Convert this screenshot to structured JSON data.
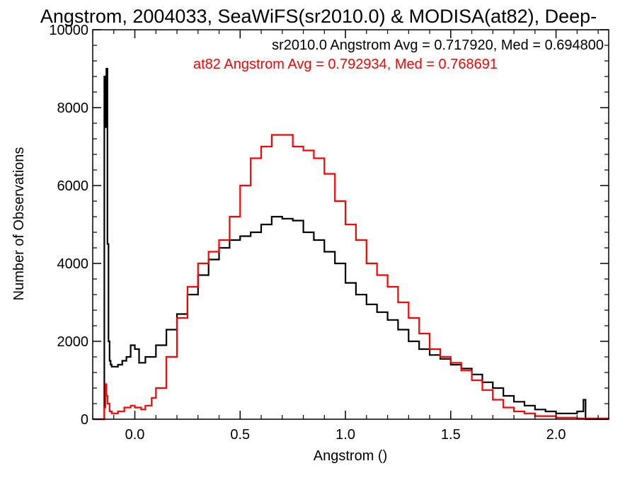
{
  "chart_data": {
    "type": "line",
    "title": "Angstrom, 2004033, SeaWiFS(sr2010.0) & MODISA(at82), Deep-",
    "xlabel": "Angstrom ()",
    "ylabel": "Number of Observations",
    "xlim": [
      -0.2,
      2.25
    ],
    "ylim": [
      0,
      10000
    ],
    "x_ticks": [
      "0.0",
      "0.5",
      "1.0",
      "1.5",
      "2.0"
    ],
    "y_ticks": [
      "0",
      "2000",
      "4000",
      "6000",
      "8000",
      "10000"
    ],
    "grid": false,
    "annotations": [
      {
        "text": "sr2010.0 Angstrom Avg = 0.717920, Med = 0.694800",
        "color": "#000000"
      },
      {
        "text": "at82 Angstrom Avg = 0.792934, Med = 0.768691",
        "color": "#ff0000"
      }
    ],
    "series": [
      {
        "color": "#000000",
        "x": [
          -0.2,
          -0.16,
          -0.15,
          -0.145,
          -0.14,
          -0.135,
          -0.13,
          -0.125,
          -0.12,
          -0.115,
          -0.11,
          -0.1,
          -0.08,
          -0.06,
          -0.04,
          -0.02,
          0.0,
          0.02,
          0.05,
          0.1,
          0.15,
          0.2,
          0.25,
          0.3,
          0.35,
          0.4,
          0.45,
          0.5,
          0.55,
          0.6,
          0.65,
          0.7,
          0.75,
          0.8,
          0.85,
          0.9,
          0.95,
          1.0,
          1.05,
          1.1,
          1.15,
          1.2,
          1.25,
          1.3,
          1.35,
          1.4,
          1.45,
          1.5,
          1.55,
          1.6,
          1.65,
          1.7,
          1.75,
          1.8,
          1.85,
          1.9,
          1.95,
          2.0,
          2.05,
          2.1,
          2.13,
          2.14,
          2.145,
          2.25
        ],
        "y": [
          0,
          0,
          0,
          8800,
          7500,
          9000,
          4500,
          2000,
          1500,
          1400,
          1350,
          1350,
          1400,
          1500,
          1600,
          1900,
          1800,
          1450,
          1600,
          1900,
          2300,
          2700,
          3200,
          3700,
          4100,
          4400,
          4600,
          4700,
          4800,
          5000,
          5200,
          5150,
          5100,
          4800,
          4600,
          4300,
          4000,
          3500,
          3200,
          2950,
          2750,
          2550,
          2300,
          2000,
          1800,
          1650,
          1550,
          1400,
          1300,
          1150,
          950,
          800,
          600,
          450,
          350,
          250,
          200,
          150,
          150,
          200,
          500,
          0,
          0,
          0
        ]
      },
      {
        "color": "#ff0000",
        "x": [
          -0.2,
          -0.16,
          -0.15,
          -0.145,
          -0.14,
          -0.135,
          -0.13,
          -0.12,
          -0.11,
          -0.1,
          -0.08,
          -0.05,
          -0.02,
          0.0,
          0.03,
          0.05,
          0.08,
          0.1,
          0.15,
          0.2,
          0.25,
          0.3,
          0.35,
          0.4,
          0.45,
          0.5,
          0.55,
          0.6,
          0.65,
          0.7,
          0.75,
          0.8,
          0.85,
          0.9,
          0.95,
          1.0,
          1.05,
          1.1,
          1.15,
          1.2,
          1.25,
          1.3,
          1.35,
          1.4,
          1.45,
          1.5,
          1.55,
          1.6,
          1.65,
          1.7,
          1.75,
          1.8,
          1.85,
          1.9,
          2.0,
          2.1,
          2.25
        ],
        "y": [
          0,
          0,
          0,
          300,
          900,
          600,
          400,
          200,
          150,
          150,
          200,
          300,
          350,
          300,
          250,
          350,
          550,
          800,
          1600,
          2600,
          3400,
          4000,
          4300,
          4600,
          5200,
          6000,
          6700,
          7000,
          7300,
          7300,
          7000,
          6900,
          6700,
          6300,
          5600,
          5000,
          4600,
          4000,
          3700,
          3400,
          3000,
          2600,
          2200,
          1800,
          1600,
          1450,
          1250,
          1000,
          750,
          500,
          300,
          200,
          150,
          80,
          40,
          20,
          0
        ]
      }
    ]
  }
}
